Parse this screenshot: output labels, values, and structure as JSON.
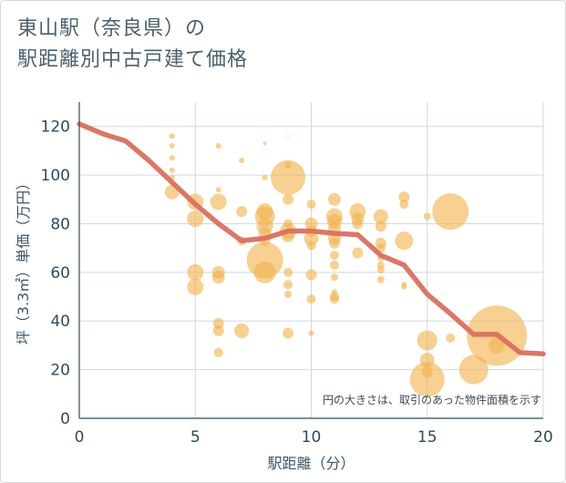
{
  "title_line1": "東山駅（奈良県）の",
  "title_line2": "駅距離別中古戸建て価格",
  "chart_data": {
    "type": "scatter",
    "xlabel": "駅距離（分）",
    "ylabel": "坪（3.3㎡）単価（万円）",
    "xlim": [
      0,
      20
    ],
    "ylim": [
      0,
      130
    ],
    "xticks": [
      "0",
      "5",
      "10",
      "15",
      "20"
    ],
    "yticks": [
      "0",
      "20",
      "40",
      "60",
      "80",
      "100",
      "120"
    ],
    "grid": true,
    "note": "円の大きさは、取引のあった物件面積を示す",
    "bubble_color": "#f2b34f",
    "line_color": "#d9705f",
    "bubbles": [
      {
        "x": 4,
        "y": 116,
        "s": 3
      },
      {
        "x": 4,
        "y": 112,
        "s": 3
      },
      {
        "x": 4,
        "y": 107,
        "s": 3
      },
      {
        "x": 4,
        "y": 102,
        "s": 3
      },
      {
        "x": 4,
        "y": 99,
        "s": 3
      },
      {
        "x": 4,
        "y": 93,
        "s": 8
      },
      {
        "x": 5,
        "y": 89,
        "s": 9
      },
      {
        "x": 5,
        "y": 82,
        "s": 9
      },
      {
        "x": 5,
        "y": 60,
        "s": 9
      },
      {
        "x": 5,
        "y": 54,
        "s": 9
      },
      {
        "x": 6,
        "y": 112,
        "s": 3
      },
      {
        "x": 6,
        "y": 94,
        "s": 3
      },
      {
        "x": 6,
        "y": 89,
        "s": 9
      },
      {
        "x": 6,
        "y": 60,
        "s": 7
      },
      {
        "x": 6,
        "y": 58,
        "s": 7
      },
      {
        "x": 6,
        "y": 39,
        "s": 6
      },
      {
        "x": 6,
        "y": 36,
        "s": 6
      },
      {
        "x": 6,
        "y": 27,
        "s": 5
      },
      {
        "x": 7,
        "y": 106,
        "s": 3
      },
      {
        "x": 7,
        "y": 85,
        "s": 6
      },
      {
        "x": 7,
        "y": 73,
        "s": 5
      },
      {
        "x": 7,
        "y": 36,
        "s": 8
      },
      {
        "x": 8,
        "y": 113,
        "s": 2
      },
      {
        "x": 8,
        "y": 99,
        "s": 3
      },
      {
        "x": 8,
        "y": 85,
        "s": 9
      },
      {
        "x": 8,
        "y": 83,
        "s": 11
      },
      {
        "x": 8,
        "y": 79,
        "s": 9
      },
      {
        "x": 8,
        "y": 76,
        "s": 7
      },
      {
        "x": 8,
        "y": 73,
        "s": 6
      },
      {
        "x": 8,
        "y": 65,
        "s": 20
      },
      {
        "x": 8,
        "y": 60,
        "s": 12
      },
      {
        "x": 9,
        "y": 116,
        "s": 1
      },
      {
        "x": 9,
        "y": 104,
        "s": 4
      },
      {
        "x": 9,
        "y": 99,
        "s": 19
      },
      {
        "x": 9,
        "y": 90,
        "s": 6
      },
      {
        "x": 9,
        "y": 80,
        "s": 5
      },
      {
        "x": 9,
        "y": 77,
        "s": 9
      },
      {
        "x": 9,
        "y": 75,
        "s": 7
      },
      {
        "x": 9,
        "y": 60,
        "s": 5
      },
      {
        "x": 9,
        "y": 55,
        "s": 5
      },
      {
        "x": 9,
        "y": 51,
        "s": 4
      },
      {
        "x": 9,
        "y": 35,
        "s": 6
      },
      {
        "x": 10,
        "y": 88,
        "s": 5
      },
      {
        "x": 10,
        "y": 80,
        "s": 7
      },
      {
        "x": 10,
        "y": 77,
        "s": 6
      },
      {
        "x": 10,
        "y": 74,
        "s": 8
      },
      {
        "x": 10,
        "y": 71,
        "s": 5
      },
      {
        "x": 10,
        "y": 59,
        "s": 6
      },
      {
        "x": 10,
        "y": 49,
        "s": 5
      },
      {
        "x": 10,
        "y": 35,
        "s": 3
      },
      {
        "x": 11,
        "y": 90,
        "s": 7
      },
      {
        "x": 11,
        "y": 83,
        "s": 9
      },
      {
        "x": 11,
        "y": 81,
        "s": 8
      },
      {
        "x": 11,
        "y": 78,
        "s": 7
      },
      {
        "x": 11,
        "y": 74,
        "s": 7
      },
      {
        "x": 11,
        "y": 72,
        "s": 6
      },
      {
        "x": 11,
        "y": 67,
        "s": 5
      },
      {
        "x": 11,
        "y": 63,
        "s": 5
      },
      {
        "x": 11,
        "y": 58,
        "s": 4
      },
      {
        "x": 11,
        "y": 52,
        "s": 3
      },
      {
        "x": 11,
        "y": 50,
        "s": 5
      },
      {
        "x": 11,
        "y": 49,
        "s": 5
      },
      {
        "x": 12,
        "y": 85,
        "s": 9
      },
      {
        "x": 12,
        "y": 82,
        "s": 7
      },
      {
        "x": 12,
        "y": 80,
        "s": 6
      },
      {
        "x": 12,
        "y": 68,
        "s": 6
      },
      {
        "x": 13,
        "y": 83,
        "s": 8
      },
      {
        "x": 13,
        "y": 79,
        "s": 6
      },
      {
        "x": 13,
        "y": 72,
        "s": 6
      },
      {
        "x": 13,
        "y": 70,
        "s": 5
      },
      {
        "x": 13,
        "y": 66,
        "s": 4
      },
      {
        "x": 13,
        "y": 63,
        "s": 4
      },
      {
        "x": 13,
        "y": 61,
        "s": 4
      },
      {
        "x": 13,
        "y": 57,
        "s": 4
      },
      {
        "x": 14,
        "y": 91,
        "s": 6
      },
      {
        "x": 14,
        "y": 88,
        "s": 5
      },
      {
        "x": 14,
        "y": 73,
        "s": 10
      },
      {
        "x": 14,
        "y": 55,
        "s": 3
      },
      {
        "x": 14,
        "y": 54,
        "s": 3
      },
      {
        "x": 15,
        "y": 83,
        "s": 4
      },
      {
        "x": 15,
        "y": 32,
        "s": 11
      },
      {
        "x": 15,
        "y": 24,
        "s": 8
      },
      {
        "x": 15,
        "y": 19,
        "s": 6
      },
      {
        "x": 15,
        "y": 16,
        "s": 19
      },
      {
        "x": 16,
        "y": 85,
        "s": 20
      },
      {
        "x": 16,
        "y": 33,
        "s": 5
      },
      {
        "x": 17,
        "y": 20,
        "s": 16
      },
      {
        "x": 18,
        "y": 34,
        "s": 33
      },
      {
        "x": 18,
        "y": 30,
        "s": 9
      }
    ],
    "line": {
      "x": [
        0,
        1,
        2,
        3,
        4,
        5,
        6,
        7,
        8,
        9,
        10,
        11,
        12,
        13,
        14,
        15,
        16,
        17,
        18,
        19,
        20
      ],
      "y": [
        121,
        117,
        114,
        106,
        97,
        88,
        80,
        73,
        74,
        77,
        77,
        76,
        75.5,
        67,
        63,
        51,
        43,
        34.5,
        34.5,
        27,
        26.5
      ]
    }
  }
}
